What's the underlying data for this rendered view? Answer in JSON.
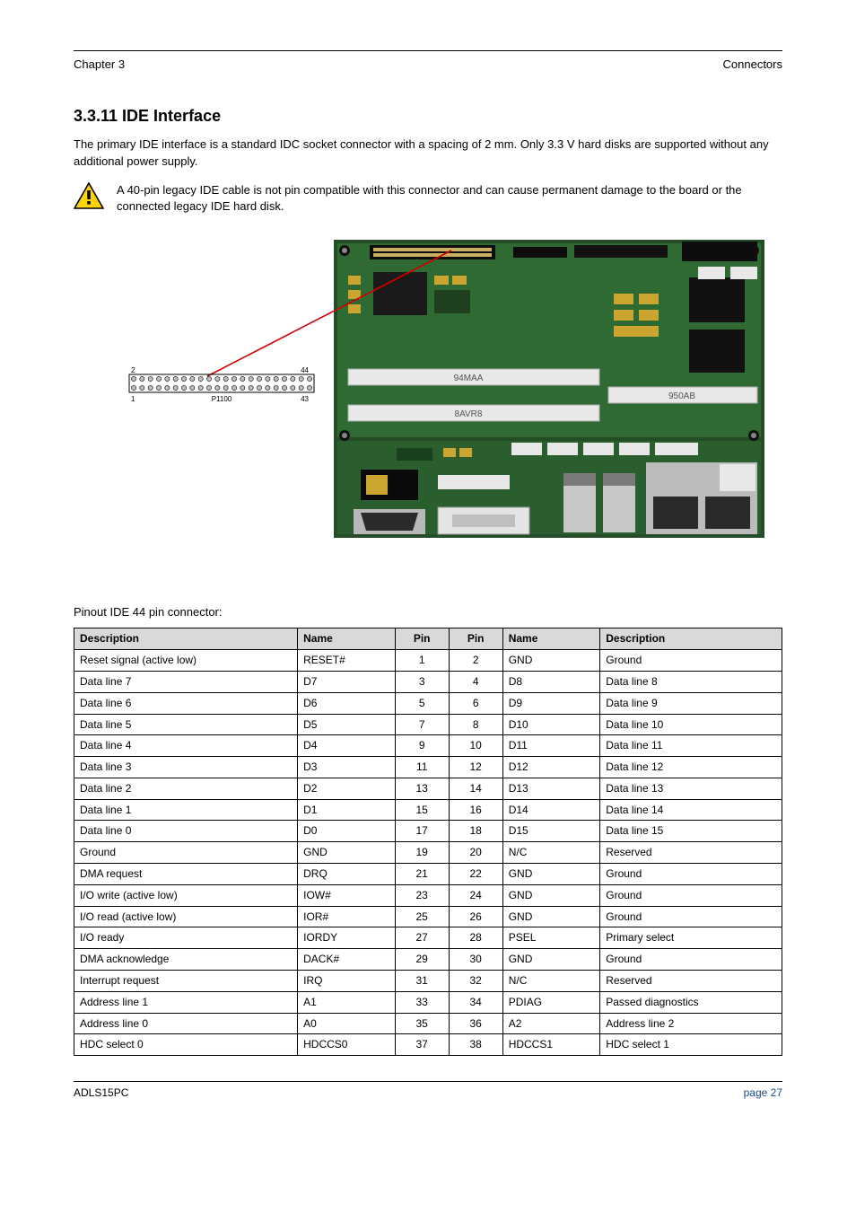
{
  "header": {
    "left": "Chapter 3",
    "right": "Connectors"
  },
  "section": {
    "number_title": "3.3.11 IDE Interface",
    "body": "The primary IDE interface is a standard IDC socket connector with a spacing of 2 mm. Only 3.3 V hard disks are supported without any additional power supply.",
    "caution": "A 40-pin legacy IDE cable is not pin compatible with this connector and can cause permanent damage to the board or the connected legacy IDE hard disk."
  },
  "pinout_intro": "Pinout IDE 44 pin connector:",
  "pinout": {
    "columns": [
      "Description",
      "Name",
      "Pin",
      "Pin",
      "Name",
      "Description"
    ],
    "rows": [
      [
        "Reset signal (active low)",
        "RESET#",
        "1",
        "2",
        "GND",
        "Ground"
      ],
      [
        "Data line 7",
        "D7",
        "3",
        "4",
        "D8",
        "Data line 8"
      ],
      [
        "Data line 6",
        "D6",
        "5",
        "6",
        "D9",
        "Data line 9"
      ],
      [
        "Data line 5",
        "D5",
        "7",
        "8",
        "D10",
        "Data line 10"
      ],
      [
        "Data line 4",
        "D4",
        "9",
        "10",
        "D11",
        "Data line 11"
      ],
      [
        "Data line 3",
        "D3",
        "11",
        "12",
        "D12",
        "Data line 12"
      ],
      [
        "Data line 2",
        "D2",
        "13",
        "14",
        "D13",
        "Data line 13"
      ],
      [
        "Data line 1",
        "D1",
        "15",
        "16",
        "D14",
        "Data line 14"
      ],
      [
        "Data line 0",
        "D0",
        "17",
        "18",
        "D15",
        "Data line 15"
      ],
      [
        "Ground",
        "GND",
        "19",
        "20",
        "N/C",
        "Reserved"
      ],
      [
        "DMA request",
        "DRQ",
        "21",
        "22",
        "GND",
        "Ground"
      ],
      [
        "I/O write (active low)",
        "IOW#",
        "23",
        "24",
        "GND",
        "Ground"
      ],
      [
        "I/O read (active low)",
        "IOR#",
        "25",
        "26",
        "GND",
        "Ground"
      ],
      [
        "I/O ready",
        "IORDY",
        "27",
        "28",
        "PSEL",
        "Primary select"
      ],
      [
        "DMA acknowledge",
        "DACK#",
        "29",
        "30",
        "GND",
        "Ground"
      ],
      [
        "Interrupt request",
        "IRQ",
        "31",
        "32",
        "N/C",
        "Reserved"
      ],
      [
        "Address line 1",
        "A1",
        "33",
        "34",
        "PDIAG",
        "Passed diagnostics"
      ],
      [
        "Address line 0",
        "A0",
        "35",
        "36",
        "A2",
        "Address line 2"
      ],
      [
        "HDC select 0",
        "HDCCS0",
        "37",
        "38",
        "HDCCS1",
        "HDC select 1"
      ]
    ]
  },
  "footer": {
    "left": "ADLS15PC",
    "right": "page 27"
  },
  "board_photo": {
    "bg": "#2a5a2e",
    "pcb_light": "#3d7a3f",
    "pcb_dark": "#1e4020",
    "chip": "#1a1a1a",
    "chip_light": "#333333",
    "connector_black": "#0d0d0d",
    "connector_white": "#e8e8e8",
    "connector_metal": "#b8b8b8",
    "gold": "#caa530",
    "labels": {
      "mid1": "94MAA",
      "mid2": "8AVR8",
      "mid3": "950AB"
    }
  },
  "connector_diagram": {
    "label": "P1100",
    "pin_top_left": "2",
    "pin_top_right": "44",
    "pin_bot_left": "1",
    "pin_bot_right": "43"
  }
}
